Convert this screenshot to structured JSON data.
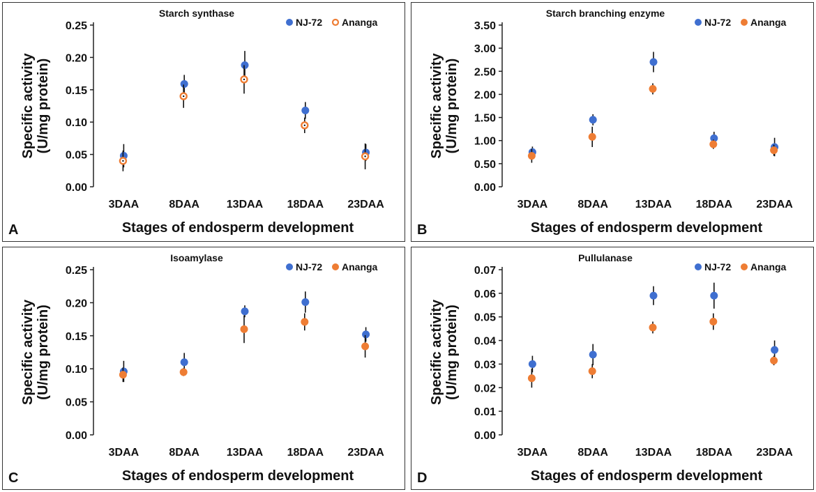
{
  "colors": {
    "nj72": "#3F6FD0",
    "ananga": "#EE7D34",
    "axis": "#222222",
    "text": "#111111"
  },
  "chart_data": [
    {
      "panel": "A",
      "type": "scatter",
      "title": "Starch synthase",
      "xlabel": "Stages of endosperm development",
      "ylabel": [
        "Specific activity",
        "(U/mg protein)"
      ],
      "categories": [
        "3DAA",
        "8DAA",
        "13DAA",
        "18DAA",
        "23DAA"
      ],
      "ylim": [
        0,
        0.25
      ],
      "yticks": [
        "0.00",
        "0.05",
        "0.10",
        "0.15",
        "0.20",
        "0.25"
      ],
      "ytick_values": [
        0,
        0.05,
        0.1,
        0.15,
        0.2,
        0.25
      ],
      "legend_position": "top-right",
      "ananga_marker": "hollow",
      "series": [
        {
          "name": "NJ-72",
          "values": [
            0.048,
            0.159,
            0.188,
            0.118,
            0.053
          ],
          "errors": [
            0.018,
            0.014,
            0.022,
            0.013,
            0.013
          ]
        },
        {
          "name": "Ananga",
          "values": [
            0.04,
            0.14,
            0.166,
            0.095,
            0.047
          ],
          "errors": [
            0.016,
            0.018,
            0.022,
            0.012,
            0.02
          ]
        }
      ]
    },
    {
      "panel": "B",
      "type": "scatter",
      "title": "Starch branching enzyme",
      "xlabel": "Stages of endosperm development",
      "ylabel": [
        "Specific activity",
        "(U/mg protein)"
      ],
      "categories": [
        "3DAA",
        "8DAA",
        "13DAA",
        "18DAA",
        "23DAA"
      ],
      "ylim": [
        0,
        3.5
      ],
      "yticks": [
        "0.00",
        "0.50",
        "1.00",
        "1.50",
        "2.00",
        "2.50",
        "3.00",
        "3.50"
      ],
      "ytick_values": [
        0,
        0.5,
        1.0,
        1.5,
        2.0,
        2.5,
        3.0,
        3.5
      ],
      "legend_position": "top-right",
      "ananga_marker": "filled",
      "series": [
        {
          "name": "NJ-72",
          "values": [
            0.75,
            1.45,
            2.7,
            1.05,
            0.86
          ],
          "errors": [
            0.12,
            0.12,
            0.22,
            0.14,
            0.2
          ]
        },
        {
          "name": "Ananga",
          "values": [
            0.67,
            1.08,
            2.12,
            0.92,
            0.79
          ],
          "errors": [
            0.15,
            0.22,
            0.12,
            0.1,
            0.12
          ]
        }
      ]
    },
    {
      "panel": "C",
      "type": "scatter",
      "title": "Isoamylase",
      "xlabel": "Stages of endosperm development",
      "ylabel": [
        "Specific activity",
        "(U/mg protein)"
      ],
      "categories": [
        "3DAA",
        "8DAA",
        "13DAA",
        "18DAA",
        "23DAA"
      ],
      "ylim": [
        0,
        0.25
      ],
      "yticks": [
        "0.00",
        "0.05",
        "0.10",
        "0.15",
        "0.20",
        "0.25"
      ],
      "ytick_values": [
        0,
        0.05,
        0.1,
        0.15,
        0.2,
        0.25
      ],
      "legend_position": "top-right",
      "ananga_marker": "filled",
      "series": [
        {
          "name": "NJ-72",
          "values": [
            0.096,
            0.11,
            0.187,
            0.201,
            0.152
          ],
          "errors": [
            0.016,
            0.014,
            0.009,
            0.016,
            0.011
          ]
        },
        {
          "name": "Ananga",
          "values": [
            0.091,
            0.095,
            0.16,
            0.171,
            0.134
          ],
          "errors": [
            0.011,
            0.006,
            0.021,
            0.013,
            0.017
          ]
        }
      ]
    },
    {
      "panel": "D",
      "type": "scatter",
      "title": "Pullulanase",
      "xlabel": "Stages of endosperm development",
      "ylabel": [
        "Specific activity",
        "(U/mg protein)"
      ],
      "categories": [
        "3DAA",
        "8DAA",
        "13DAA",
        "18DAA",
        "23DAA"
      ],
      "ylim": [
        0,
        0.07
      ],
      "yticks": [
        "0.00",
        "0.01",
        "0.02",
        "0.03",
        "0.04",
        "0.05",
        "0.06",
        "0.07"
      ],
      "ytick_values": [
        0,
        0.01,
        0.02,
        0.03,
        0.04,
        0.05,
        0.06,
        0.07
      ],
      "legend_position": "top-right",
      "ananga_marker": "filled",
      "series": [
        {
          "name": "NJ-72",
          "values": [
            0.03,
            0.034,
            0.059,
            0.059,
            0.036
          ],
          "errors": [
            0.0035,
            0.0045,
            0.004,
            0.0055,
            0.004
          ]
        },
        {
          "name": "Ananga",
          "values": [
            0.024,
            0.027,
            0.0455,
            0.048,
            0.0315
          ],
          "errors": [
            0.004,
            0.003,
            0.0025,
            0.0035,
            0.002
          ]
        }
      ]
    }
  ]
}
